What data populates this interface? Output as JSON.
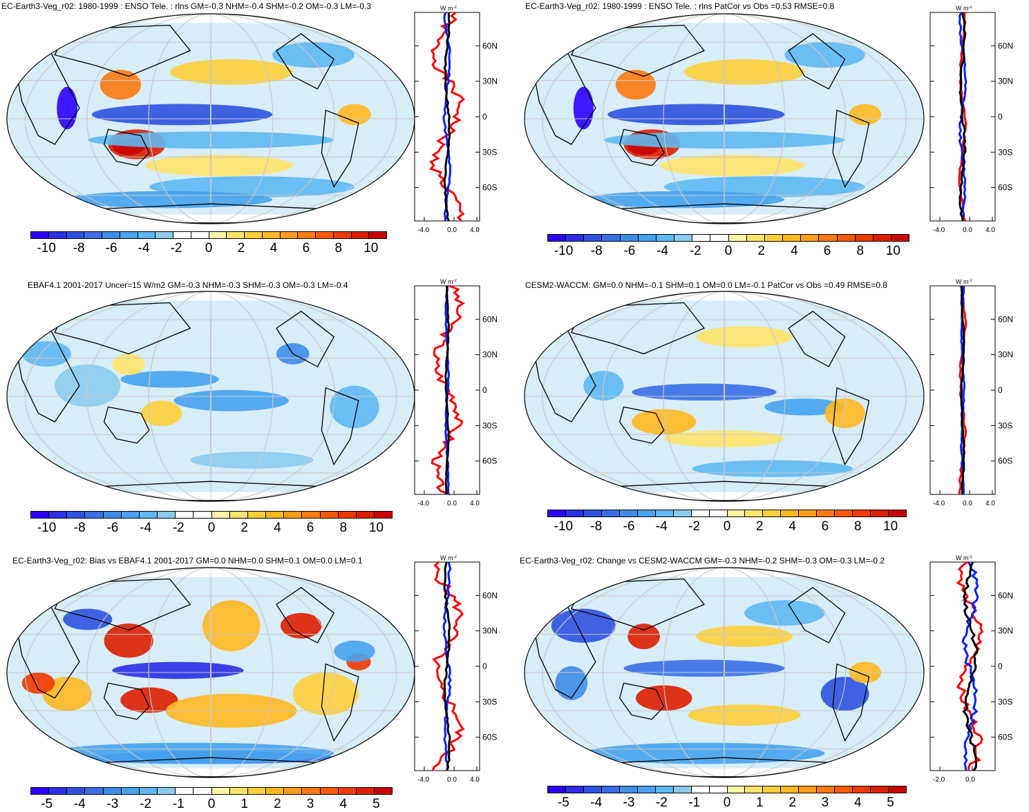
{
  "panels": [
    {
      "title": "EC-Earth3-Veg_r02: 1980-1999 : ENSO Tele. : rlns GM=-0.3 NHM=-0.4 SHM=-0.2 OM=-0.3 LM=-0.3",
      "colorbar_ticks": [
        "-10",
        "-8",
        "-6",
        "-4",
        "-2",
        "0",
        "2",
        "4",
        "6",
        "8",
        "10"
      ],
      "zonal_xticks": [
        "-4.0",
        "0.0",
        "4.0"
      ]
    },
    {
      "title": "EC-Earth3-Veg_r02: 1980-1999 : ENSO Tele. : rlns PatCor vs Obs =0.53 RMSE=0.8",
      "colorbar_ticks": [
        "-10",
        "-8",
        "-6",
        "-4",
        "-2",
        "0",
        "2",
        "4",
        "6",
        "8",
        "10"
      ],
      "zonal_xticks": [
        "-4.0",
        "0.0",
        "4.0"
      ]
    },
    {
      "title": "EBAF4.1 2001-2017 Uncer=15 W/m2 GM=-0.3 NHM=-0.3 SHM=-0.3 OM=-0.3 LM=-0.4",
      "colorbar_ticks": [
        "-10",
        "-8",
        "-6",
        "-4",
        "-2",
        "0",
        "2",
        "4",
        "6",
        "8",
        "10"
      ],
      "zonal_xticks": [
        "-4.0",
        "0.0",
        "4.0"
      ]
    },
    {
      "title": "CESM2-WACCM: GM=0.0 NHM=-0.1 SHM=0.1 OM=0.0 LM=-0.1 PatCor vs Obs =0.49 RMSE=0.8",
      "colorbar_ticks": [
        "-10",
        "-8",
        "-6",
        "-4",
        "-2",
        "0",
        "2",
        "4",
        "6",
        "8",
        "10"
      ],
      "zonal_xticks": [
        "-4.0",
        "0.0",
        "4.0"
      ]
    },
    {
      "title": "EC-Earth3-Veg_r02: Bias vs EBAF4.1 2001-2017 GM=0.0 NHM=0.0 SHM=0.1 OM=0.0 LM=0.1",
      "colorbar_ticks": [
        "-5",
        "-4",
        "-3",
        "-2",
        "-1",
        "0",
        "1",
        "2",
        "3",
        "4",
        "5"
      ],
      "zonal_xticks": [
        "-4.0",
        "0.0",
        "4.0"
      ]
    },
    {
      "title": "EC-Earth3-Veg_r02: Change vs CESM2-WACCM GM=-0.3 NHM=-0.2 SHM=-0.3 OM=-0.3 LM=-0.2",
      "colorbar_ticks": [
        "-5",
        "-4",
        "-3",
        "-2",
        "-1",
        "0",
        "1",
        "2",
        "3",
        "4",
        "5"
      ],
      "zonal_xticks": [
        "-2.0",
        "0.0"
      ]
    }
  ],
  "latitude_labels": [
    "60N",
    "30N",
    "0",
    "30S",
    "60S"
  ],
  "zonal_unit": "W m",
  "zonal_unit_exp": "-2",
  "palette": [
    "#2e00ff",
    "#2a2ee6",
    "#2f52e0",
    "#3a6ee6",
    "#3f8ce8",
    "#47a3ee",
    "#5fb8f2",
    "#8ccbec",
    "#ffffff",
    "#ffffff",
    "#fff4a6",
    "#ffe36a",
    "#ffcf3a",
    "#ffb820",
    "#ff9d18",
    "#ff7a10",
    "#ff5a08",
    "#f03a00",
    "#dd1e00",
    "#c80000"
  ],
  "colors": {
    "red_line": "#ff0000",
    "blue_line": "#0020ff",
    "black_line": "#000000",
    "grid": "#c8c8c8"
  }
}
